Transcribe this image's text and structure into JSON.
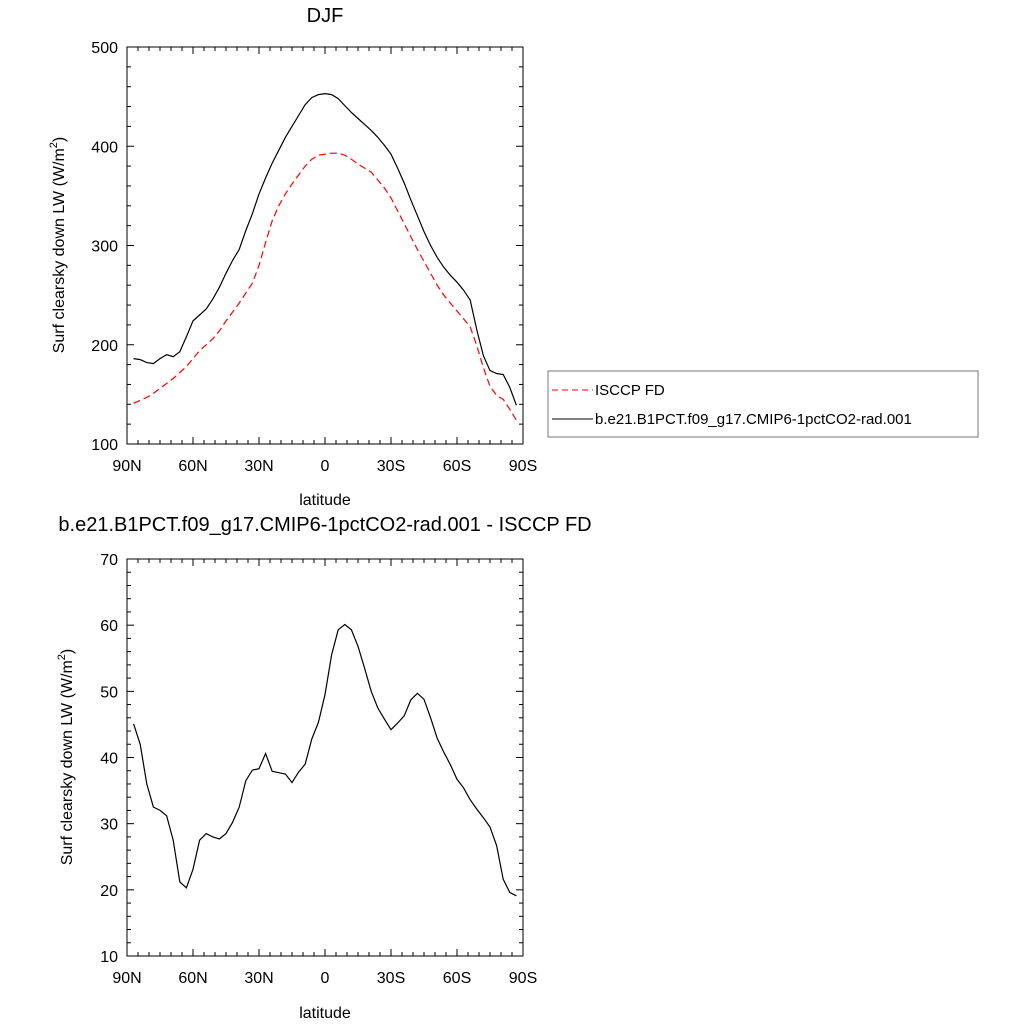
{
  "chart_data": [
    {
      "type": "line",
      "title": "DJF",
      "xlabel": "latitude",
      "ylabel_main": "Surf clearsky down LW (W/m",
      "ylabel_sup": "2",
      "ylabel_end": ")",
      "xlim": [
        90,
        -90
      ],
      "ylim": [
        100,
        500
      ],
      "x_ticks": [
        90,
        60,
        30,
        0,
        -30,
        -60,
        -90
      ],
      "x_tick_labels": [
        "90N",
        "60N",
        "30N",
        "0",
        "30S",
        "60S",
        "90S"
      ],
      "y_ticks": [
        100,
        200,
        300,
        400,
        500
      ],
      "y_tick_labels": [
        "100",
        "200",
        "300",
        "400",
        "500"
      ],
      "legend_position": "right",
      "series": [
        {
          "name": "ISCCP FD",
          "color": "#ff0000",
          "dash": "dashed",
          "x": [
            87,
            84,
            81,
            78,
            75,
            72,
            69,
            66,
            63,
            60,
            57,
            54,
            51,
            48,
            45,
            42,
            39,
            36,
            33,
            30,
            27,
            24,
            21,
            18,
            15,
            12,
            9,
            6,
            3,
            0,
            -3,
            -6,
            -9,
            -12,
            -15,
            -18,
            -21,
            -24,
            -27,
            -30,
            -33,
            -36,
            -39,
            -42,
            -45,
            -48,
            -51,
            -54,
            -57,
            -60,
            -63,
            -66,
            -69,
            -72,
            -75,
            -78,
            -81,
            -84,
            -87
          ],
          "y": [
            141,
            144,
            147,
            151,
            156,
            161,
            166,
            172,
            178,
            186,
            194,
            200,
            206,
            214,
            224,
            233,
            242,
            252,
            262,
            280,
            303,
            325,
            340,
            352,
            362,
            371,
            380,
            387,
            391,
            392,
            393,
            393,
            391,
            387,
            382,
            378,
            374,
            366,
            358,
            348,
            335,
            322,
            309,
            296,
            284,
            272,
            260,
            250,
            242,
            234,
            226,
            218,
            199,
            177,
            158,
            149,
            145,
            135,
            124
          ]
        },
        {
          "name": "b.e21.B1PCT.f09_g17.CMIP6-1pctCO2-rad.001",
          "color": "#000000",
          "dash": "solid",
          "x": [
            87,
            84,
            81,
            78,
            75,
            72,
            69,
            66,
            63,
            60,
            57,
            54,
            51,
            48,
            45,
            42,
            39,
            36,
            33,
            30,
            27,
            24,
            21,
            18,
            15,
            12,
            9,
            6,
            3,
            0,
            -3,
            -6,
            -9,
            -12,
            -15,
            -18,
            -21,
            -24,
            -27,
            -30,
            -33,
            -36,
            -39,
            -42,
            -45,
            -48,
            -51,
            -54,
            -57,
            -60,
            -63,
            -66,
            -69,
            -72,
            -75,
            -78,
            -81,
            -84,
            -87
          ],
          "y": [
            186,
            185,
            182,
            181,
            186,
            190,
            188,
            193,
            208,
            224,
            230,
            236,
            246,
            258,
            272,
            285,
            296,
            315,
            332,
            352,
            368,
            383,
            396,
            409,
            420,
            431,
            442,
            449,
            452,
            453,
            452,
            448,
            441,
            434,
            428,
            422,
            416,
            409,
            401,
            392,
            378,
            363,
            346,
            330,
            314,
            300,
            288,
            278,
            270,
            263,
            255,
            245,
            215,
            189,
            174,
            171,
            170,
            157,
            139
          ]
        }
      ]
    },
    {
      "type": "line",
      "title": "b.e21.B1PCT.f09_g17.CMIP6-1pctCO2-rad.001 - ISCCP FD",
      "xlabel": "latitude",
      "ylabel_main": "Surf clearsky down LW (W/m",
      "ylabel_sup": "2",
      "ylabel_end": ")",
      "xlim": [
        90,
        -90
      ],
      "ylim": [
        10,
        70
      ],
      "x_ticks": [
        90,
        60,
        30,
        0,
        -30,
        -60,
        -90
      ],
      "x_tick_labels": [
        "90N",
        "60N",
        "30N",
        "0",
        "30S",
        "60S",
        "90S"
      ],
      "y_ticks": [
        10,
        20,
        30,
        40,
        50,
        60,
        70
      ],
      "y_tick_labels": [
        "10",
        "20",
        "30",
        "40",
        "50",
        "60",
        "70"
      ],
      "series": [
        {
          "color": "#000000",
          "dash": "solid",
          "x": [
            87,
            84,
            81,
            78,
            75,
            72,
            69,
            66,
            63,
            60,
            57,
            54,
            51,
            48,
            45,
            42,
            39,
            36,
            33,
            30,
            27,
            24,
            21,
            18,
            15,
            12,
            9,
            6,
            3,
            0,
            -3,
            -6,
            -9,
            -12,
            -15,
            -18,
            -21,
            -24,
            -27,
            -30,
            -33,
            -36,
            -39,
            -42,
            -45,
            -48,
            -51,
            -54,
            -57,
            -60,
            -63,
            -66,
            -69,
            -72,
            -75,
            -78,
            -81,
            -84,
            -87
          ],
          "y": [
            45.1,
            42.0,
            36.0,
            32.5,
            32.0,
            31.2,
            27.5,
            21.2,
            20.3,
            23.1,
            27.5,
            28.5,
            28.0,
            27.7,
            28.5,
            30.2,
            32.5,
            36.5,
            38.1,
            38.3,
            40.6,
            37.9,
            37.7,
            37.5,
            36.2,
            37.8,
            39.0,
            42.8,
            45.3,
            49.5,
            55.5,
            59.3,
            60.1,
            59.3,
            56.8,
            53.5,
            50.0,
            47.5,
            45.8,
            44.2,
            45.2,
            46.3,
            48.7,
            49.7,
            48.8,
            46.0,
            42.9,
            40.8,
            38.9,
            36.7,
            35.4,
            33.6,
            32.2,
            30.9,
            29.5,
            26.7,
            21.6,
            19.6,
            19.1
          ]
        }
      ]
    }
  ],
  "legend": {
    "items": [
      {
        "label": "ISCCP FD",
        "color": "#ff0000",
        "dash": "dashed"
      },
      {
        "label": "b.e21.B1PCT.f09_g17.CMIP6-1pctCO2-rad.001",
        "color": "#000000",
        "dash": "solid"
      }
    ]
  }
}
